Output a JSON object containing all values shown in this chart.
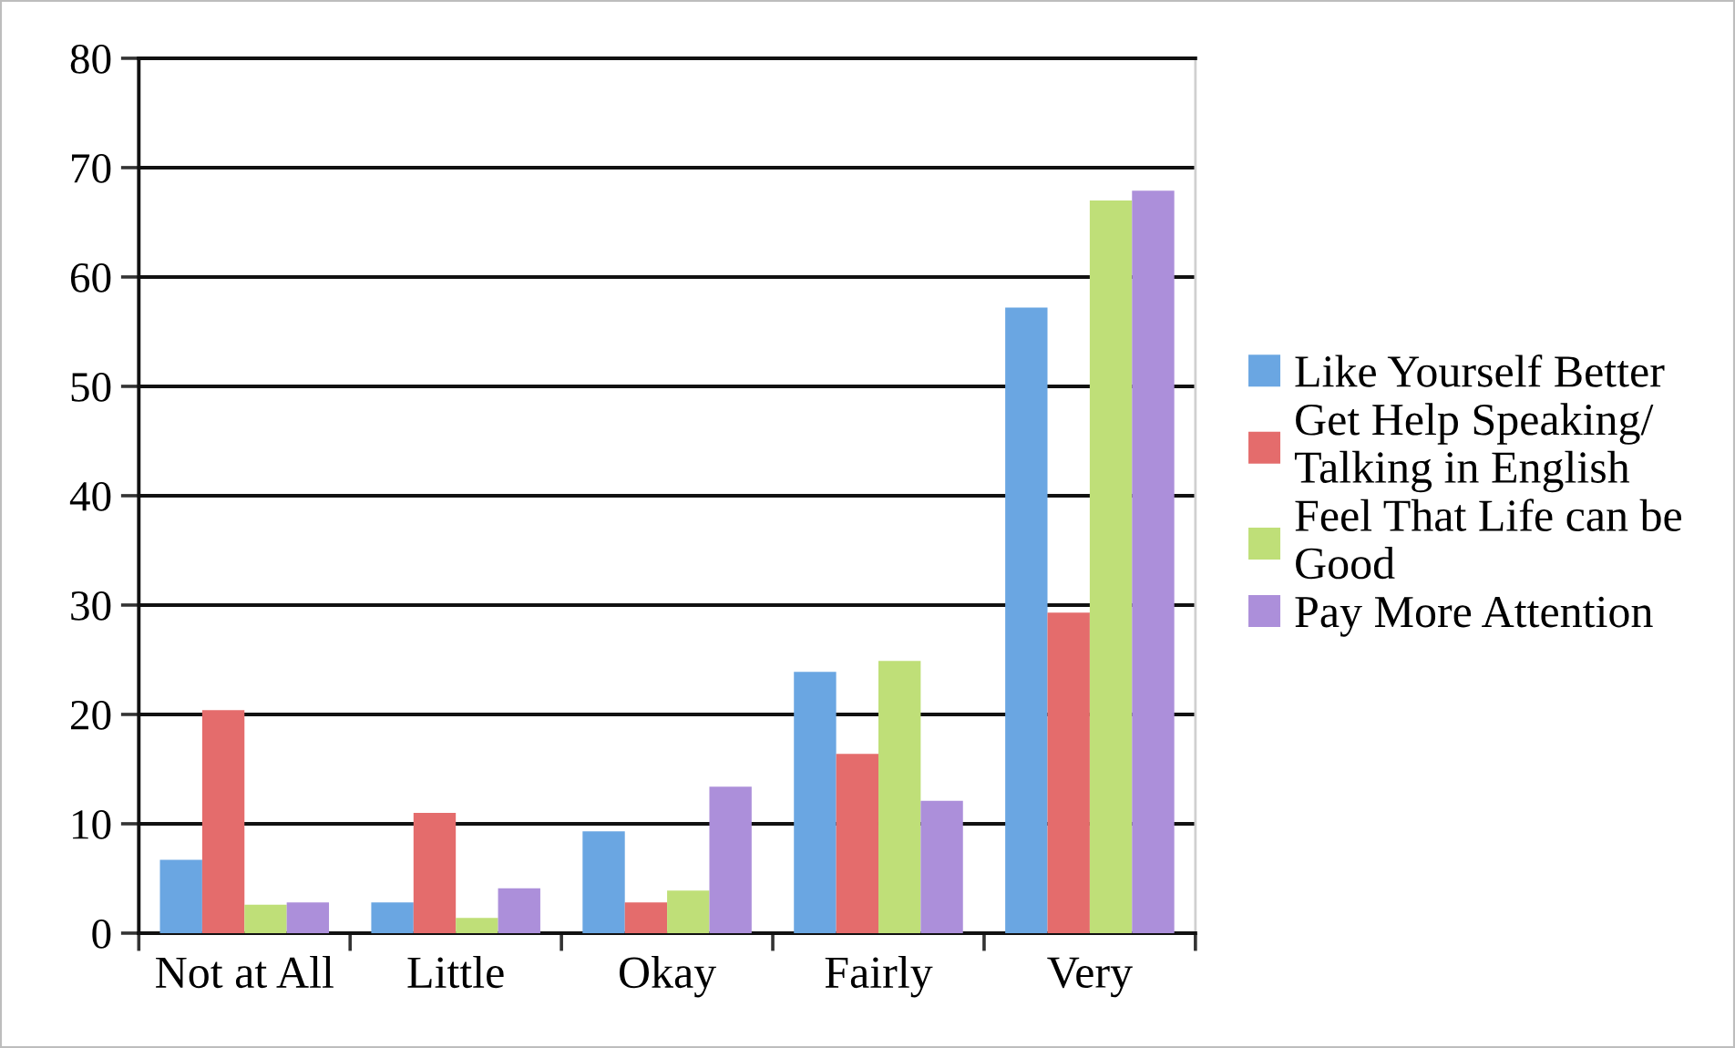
{
  "chart_data": {
    "type": "bar",
    "categories": [
      "Not at All",
      "Little",
      "Okay",
      "Fairly",
      "Very"
    ],
    "series": [
      {
        "name": "Like Yourself Better",
        "color": "#6aa6e2",
        "values": [
          6.7,
          2.8,
          9.3,
          23.9,
          57.2
        ]
      },
      {
        "name": "Get Help Speaking/\nTalking in English",
        "color": "#e46c6c",
        "values": [
          20.4,
          11.0,
          2.8,
          16.4,
          29.3
        ]
      },
      {
        "name": "Feel That Life can be\nGood",
        "color": "#bfdf78",
        "values": [
          2.6,
          1.4,
          3.9,
          24.9,
          67.0
        ]
      },
      {
        "name": "Pay More Attention",
        "color": "#ac8fda",
        "values": [
          2.8,
          4.1,
          13.4,
          12.1,
          67.9
        ]
      }
    ],
    "ylim": [
      0,
      80
    ],
    "yticks": [
      0,
      10,
      20,
      30,
      40,
      50,
      60,
      70,
      80
    ],
    "grid": "y",
    "legend": "right"
  }
}
